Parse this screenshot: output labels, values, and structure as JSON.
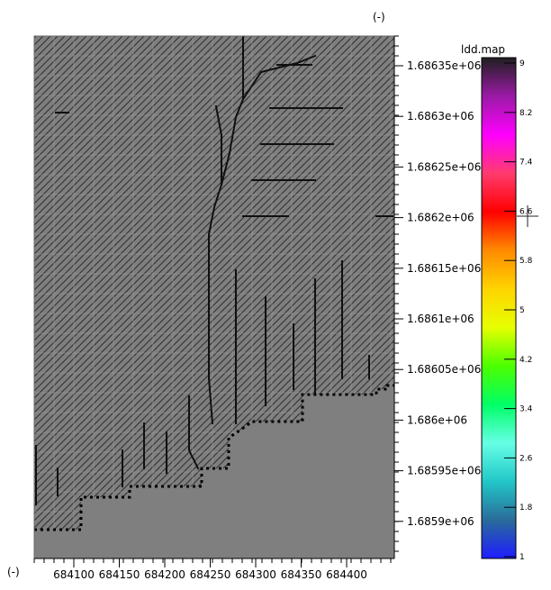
{
  "units": {
    "top": "(-)",
    "bottom": "(-)"
  },
  "map": {
    "background": "#7f7f7f",
    "line_color": "#101010",
    "hatch_color": "#2e2e2e",
    "boundary_color": "#000000"
  },
  "x_axis": {
    "ticks": [
      "684100",
      "684150",
      "684200",
      "684250",
      "684300",
      "684350",
      "684400"
    ]
  },
  "y_axis": {
    "ticks": [
      "1.68635e+06",
      "1.6863e+06",
      "1.68625e+06",
      "1.6862e+06",
      "1.68615e+06",
      "1.6861e+06",
      "1.68605e+06",
      "1.686e+06",
      "1.68595e+06",
      "1.6859e+06"
    ]
  },
  "legend": {
    "title": "ldd.map",
    "ticks": [
      "9",
      "8.2",
      "7.4",
      "6.6",
      "5.8",
      "5",
      "4.2",
      "3.4",
      "2.6",
      "1.8",
      "1"
    ],
    "colors": [
      "#1f1f1f",
      "#9a1aa5",
      "#ff00ff",
      "#ff3b6e",
      "#ff0000",
      "#ff8a00",
      "#ffd400",
      "#e7ff00",
      "#4cff00",
      "#00ff66",
      "#66ffe6",
      "#22c7c7",
      "#2a6c9a",
      "#1d1dff"
    ]
  }
}
